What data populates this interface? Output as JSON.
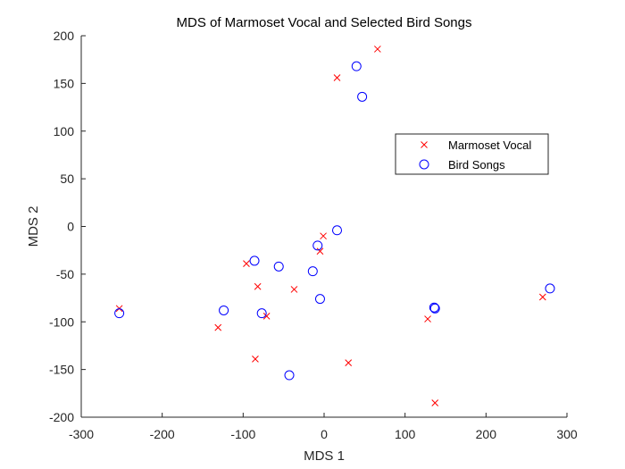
{
  "chart_data": {
    "type": "scatter",
    "title": "MDS of Marmoset Vocal and Selected Bird Songs",
    "xlabel": "MDS 1",
    "ylabel": "MDS 2",
    "xlim": [
      -300,
      300
    ],
    "ylim": [
      -200,
      200
    ],
    "xticks": [
      "-300",
      "-200",
      "-100",
      "0",
      "100",
      "200",
      "300"
    ],
    "yticks": [
      "200",
      "150",
      "100",
      "50",
      "0",
      "-50",
      "-100",
      "-150",
      "-200"
    ],
    "grid": false,
    "legend_position": "upper-right",
    "series": [
      {
        "name": "Marmoset Vocal",
        "marker": "x",
        "color": "#ff0000",
        "points": [
          [
            66,
            186
          ],
          [
            16,
            156
          ],
          [
            -1,
            -10
          ],
          [
            -5,
            -26
          ],
          [
            -96,
            -39
          ],
          [
            -82,
            -63
          ],
          [
            -37,
            -66
          ],
          [
            -71,
            -94
          ],
          [
            -253,
            -86
          ],
          [
            -131,
            -106
          ],
          [
            -85,
            -139
          ],
          [
            30,
            -143
          ],
          [
            128,
            -97
          ],
          [
            270,
            -74
          ],
          [
            137,
            -185
          ]
        ]
      },
      {
        "name": "Bird Songs",
        "marker": "o",
        "color": "#0000ff",
        "points": [
          [
            40,
            168
          ],
          [
            47,
            136
          ],
          [
            16,
            -4
          ],
          [
            -8,
            -20
          ],
          [
            -86,
            -36
          ],
          [
            -56,
            -42
          ],
          [
            -14,
            -47
          ],
          [
            -5,
            -76
          ],
          [
            -253,
            -91
          ],
          [
            -124,
            -88
          ],
          [
            -77,
            -91
          ],
          [
            -43,
            -156
          ],
          [
            136,
            -85
          ],
          [
            137,
            -86
          ],
          [
            279,
            -65
          ]
        ]
      }
    ]
  }
}
